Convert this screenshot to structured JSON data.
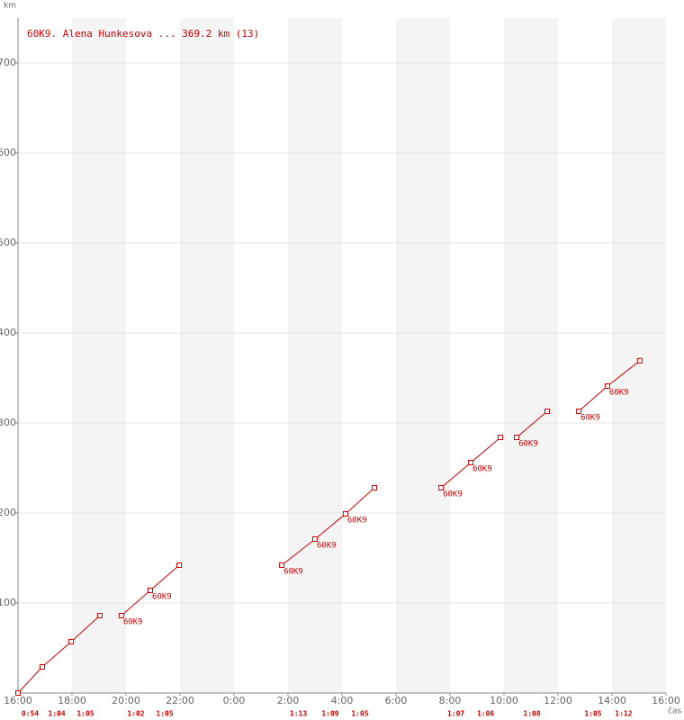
{
  "chart_data": {
    "type": "line",
    "title": "60K9. Alena Hunkesova ... 369.2 km (13)",
    "y_label": "km",
    "x_label": "čas",
    "xlim": [
      0,
      24
    ],
    "xticks": [
      {
        "value": 0,
        "label": "16:00"
      },
      {
        "value": 2,
        "label": "18:00"
      },
      {
        "value": 4,
        "label": "20:00"
      },
      {
        "value": 6,
        "label": "22:00"
      },
      {
        "value": 8,
        "label": "0:00"
      },
      {
        "value": 10,
        "label": "2:00"
      },
      {
        "value": 12,
        "label": "4:00"
      },
      {
        "value": 14,
        "label": "6:00"
      },
      {
        "value": 16,
        "label": "8:00"
      },
      {
        "value": 18,
        "label": "10:00"
      },
      {
        "value": 20,
        "label": "12:00"
      },
      {
        "value": 22,
        "label": "14:00"
      },
      {
        "value": 24,
        "label": "16:00"
      }
    ],
    "ylim": [
      0,
      750
    ],
    "yticks": [
      100,
      200,
      300,
      400,
      500,
      600,
      700
    ],
    "grid": true,
    "x": [
      0,
      0.9,
      1.97,
      3.03,
      null,
      3.83,
      4.9,
      5.97,
      null,
      9.77,
      11.0,
      12.13,
      13.2,
      null,
      15.67,
      16.77,
      17.87,
      null,
      18.47,
      19.6,
      null,
      20.77,
      21.83,
      23.03
    ],
    "series": [
      {
        "name": "60K9",
        "color": "#d00000",
        "values": [
          0,
          29,
          57,
          86,
          null,
          86,
          114,
          142,
          null,
          142,
          171,
          199,
          228,
          null,
          228,
          256,
          284,
          null,
          284,
          313,
          null,
          313,
          341,
          369.2
        ],
        "point_labels": [
          null,
          null,
          null,
          null,
          null,
          "60K9",
          "60K9",
          null,
          null,
          "60K9",
          "60K9",
          "60K9",
          null,
          null,
          "60K9",
          "60K9",
          null,
          null,
          "60K9",
          null,
          null,
          "60K9",
          "60K9",
          null
        ]
      }
    ],
    "lap_times": [
      "0:54",
      "1:04",
      "1:05",
      "1:02",
      "1:05",
      "1:13",
      "1:09",
      "1:05",
      "1:07",
      "1:06",
      "1:08",
      "1:05",
      "1:12"
    ]
  }
}
